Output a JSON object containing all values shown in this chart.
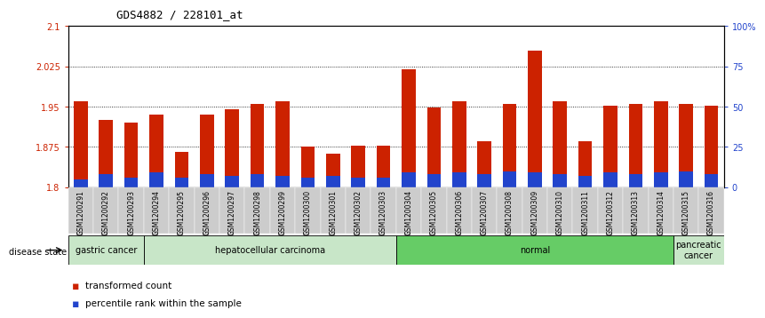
{
  "title": "GDS4882 / 228101_at",
  "samples": [
    "GSM1200291",
    "GSM1200292",
    "GSM1200293",
    "GSM1200294",
    "GSM1200295",
    "GSM1200296",
    "GSM1200297",
    "GSM1200298",
    "GSM1200299",
    "GSM1200300",
    "GSM1200301",
    "GSM1200302",
    "GSM1200303",
    "GSM1200304",
    "GSM1200305",
    "GSM1200306",
    "GSM1200307",
    "GSM1200308",
    "GSM1200309",
    "GSM1200310",
    "GSM1200311",
    "GSM1200312",
    "GSM1200313",
    "GSM1200314",
    "GSM1200315",
    "GSM1200316"
  ],
  "transformed_count": [
    1.96,
    1.925,
    1.92,
    1.935,
    1.865,
    1.935,
    1.945,
    1.955,
    1.96,
    1.875,
    1.862,
    1.878,
    1.878,
    2.02,
    1.948,
    1.96,
    1.885,
    1.955,
    2.055,
    1.96,
    1.885,
    1.952,
    1.955,
    1.96,
    1.955,
    1.951
  ],
  "percentile_rank": [
    5,
    8,
    6,
    9,
    6,
    8,
    7,
    8,
    7,
    6,
    7,
    6,
    6,
    9,
    8,
    9,
    8,
    10,
    9,
    8,
    7,
    9,
    8,
    9,
    10,
    8
  ],
  "disease_groups": [
    {
      "label": "gastric cancer",
      "start": 0,
      "end": 3
    },
    {
      "label": "hepatocellular carcinoma",
      "start": 3,
      "end": 13
    },
    {
      "label": "normal",
      "start": 13,
      "end": 24
    },
    {
      "label": "pancreatic\ncancer",
      "start": 24,
      "end": 26
    }
  ],
  "group_colors": [
    "#c8e6c8",
    "#c8e6c8",
    "#66cc66",
    "#c8e6c8"
  ],
  "ylim_left": [
    1.8,
    2.1
  ],
  "ylim_right": [
    0,
    100
  ],
  "yticks_left": [
    1.8,
    1.875,
    1.95,
    2.025,
    2.1
  ],
  "ytick_labels_left": [
    "1.8",
    "1.875",
    "1.95",
    "2.025",
    "2.1"
  ],
  "yticks_right": [
    0,
    25,
    50,
    75,
    100
  ],
  "ytick_labels_right": [
    "0",
    "25",
    "50",
    "75",
    "100%"
  ],
  "bar_color": "#cc2200",
  "blue_color": "#2244cc",
  "bar_width": 0.55,
  "bg_color": "#ffffff",
  "legend_items": [
    "transformed count",
    "percentile rank within the sample"
  ]
}
